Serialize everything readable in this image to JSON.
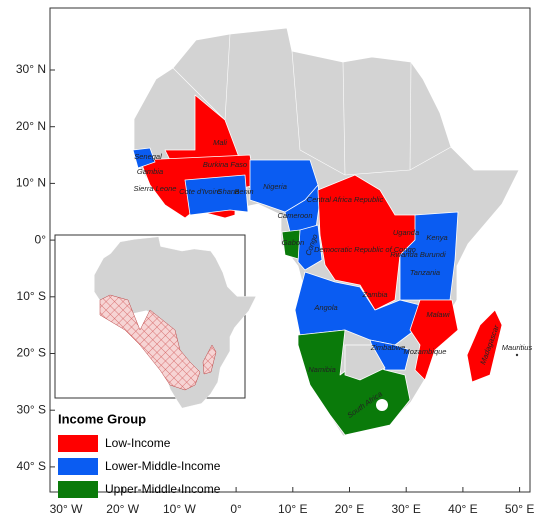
{
  "map": {
    "lat_labels": [
      "30° N",
      "20° N",
      "10° N",
      "0°",
      "10° S",
      "20° S",
      "30° S",
      "40° S"
    ],
    "lon_labels": [
      "30° W",
      "20° W",
      "10° W",
      "0°",
      "10° E",
      "20° E",
      "30° E",
      "40° E",
      "50° E"
    ],
    "countries": [
      {
        "label": "Mali"
      },
      {
        "label": "Senegal"
      },
      {
        "label": "Burkina Faso"
      },
      {
        "label": "Gambia"
      },
      {
        "label": "Sierra Leone"
      },
      {
        "label": "Cote d'Ivoire"
      },
      {
        "label": "Ghana"
      },
      {
        "label": "Benin"
      },
      {
        "label": "Nigeria"
      },
      {
        "label": "Cameroon"
      },
      {
        "label": "Central Africa Republic"
      },
      {
        "label": "Gabon"
      },
      {
        "label": "Congo"
      },
      {
        "label": "Democratic Republic of Congo"
      },
      {
        "label": "Uganda"
      },
      {
        "label": "Kenya"
      },
      {
        "label": "Rwanda Burundi"
      },
      {
        "label": "Tanzania"
      },
      {
        "label": "Angola"
      },
      {
        "label": "Zambia"
      },
      {
        "label": "Malawi"
      },
      {
        "label": "Mozambique"
      },
      {
        "label": "Zimbabwe"
      },
      {
        "label": "Namibia"
      },
      {
        "label": "South Africa"
      },
      {
        "label": "Madagascar"
      },
      {
        "label": "Mauritius"
      }
    ],
    "legend": {
      "title": "Income Group",
      "items": [
        {
          "label": "Low-Income",
          "color": "#ff0000"
        },
        {
          "label": "Lower-Middle-Income",
          "color": "#0a5cf2"
        },
        {
          "label": "Upper-Middle-Income",
          "color": "#0a7a0a"
        }
      ]
    }
  }
}
